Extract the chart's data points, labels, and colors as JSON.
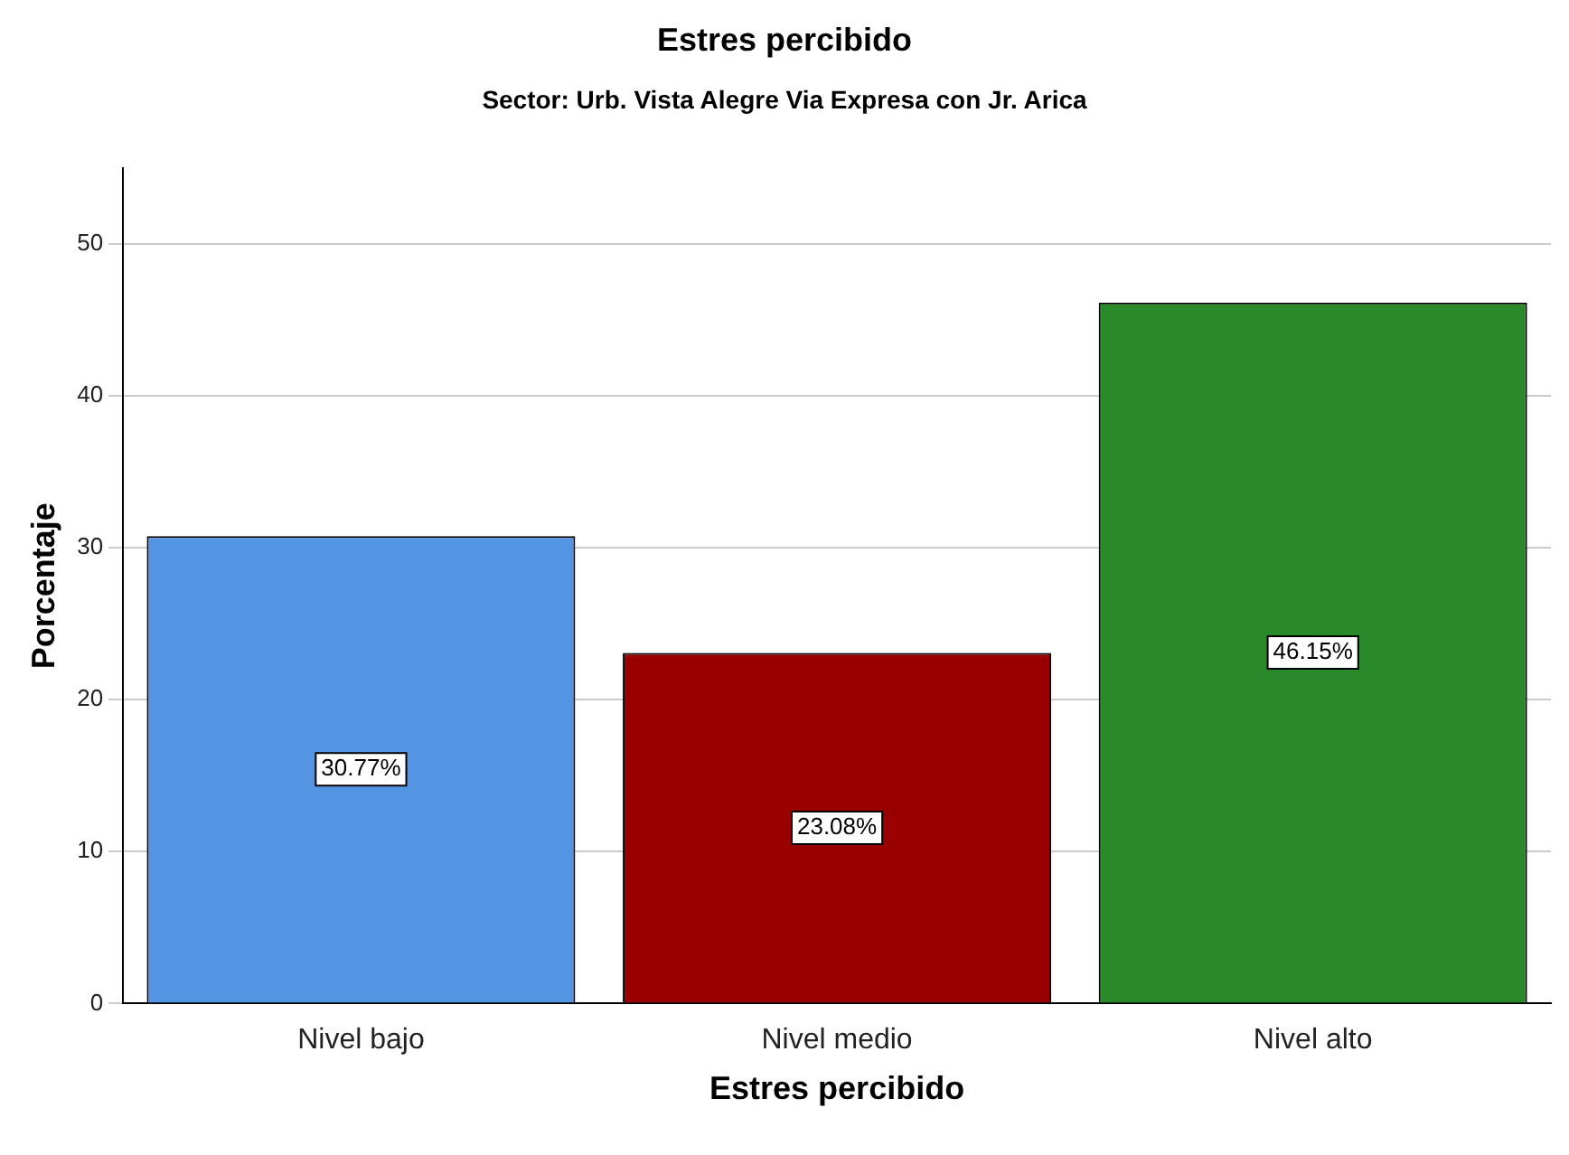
{
  "chart_data": {
    "type": "bar",
    "title": "Estres percibido",
    "subtitle": "Sector: Urb. Vista Alegre Via Expresa con Jr. Arica",
    "xlabel": "Estres percibido",
    "ylabel": "Porcentaje",
    "categories": [
      "Nivel bajo",
      "Nivel medio",
      "Nivel alto"
    ],
    "values": [
      30.77,
      23.08,
      46.15
    ],
    "colors": [
      "#5394e3",
      "#990000",
      "#2a8a2a"
    ],
    "value_labels": [
      "30.77%",
      "23.08%",
      "46.15%"
    ],
    "ylim": [
      0,
      55
    ],
    "yticks": [
      0,
      10,
      20,
      30,
      40,
      50
    ],
    "grid": "y",
    "legend": false
  }
}
